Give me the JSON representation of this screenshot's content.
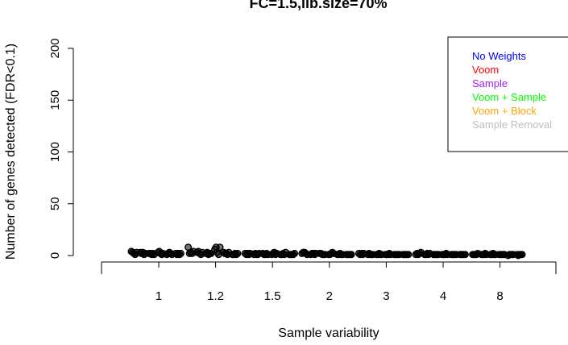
{
  "chart_data": {
    "type": "scatter",
    "title": "FC=1.5,lib.size=70%",
    "xlabel": "Sample variability",
    "ylabel": "Number of genes detected (FDR<0.1)",
    "categories": [
      "1",
      "1.2",
      "1.5",
      "2",
      "3",
      "4",
      "8"
    ],
    "ylim": [
      0,
      200
    ],
    "yticks": [
      0,
      50,
      100,
      150,
      200
    ],
    "legend_position": "top-right",
    "point_color": "#000000",
    "series": [
      {
        "name": "No Weights",
        "color": "#0000FF"
      },
      {
        "name": "Voom",
        "color": "#FF0000"
      },
      {
        "name": "Sample",
        "color": "#A020F0"
      },
      {
        "name": "Voom + Sample",
        "color": "#00FF00"
      },
      {
        "name": "Voom + Block",
        "color": "#FFA500"
      },
      {
        "name": "Sample Removal",
        "color": "#BEBEBE"
      }
    ],
    "points": [
      [
        [
          4,
          3,
          2,
          3,
          1,
          2
        ],
        [
          3,
          2,
          2,
          4,
          2,
          1
        ],
        [
          2,
          3,
          1,
          2,
          3,
          2
        ],
        [
          1,
          1,
          2,
          1,
          2,
          1
        ],
        [
          3,
          2,
          1,
          2,
          1,
          2
        ]
      ],
      [
        [
          8,
          3,
          2,
          6,
          3,
          1
        ],
        [
          2,
          4,
          3,
          8,
          2,
          1
        ],
        [
          3,
          2,
          1,
          3,
          2,
          2
        ],
        [
          2,
          1,
          2,
          1,
          1,
          1
        ],
        [
          4,
          3,
          2,
          8,
          3,
          2
        ]
      ],
      [
        [
          2,
          1,
          2,
          1,
          1,
          1
        ],
        [
          1,
          2,
          1,
          2,
          1,
          1
        ],
        [
          2,
          1,
          1,
          3,
          2,
          1
        ],
        [
          1,
          1,
          2,
          1,
          1,
          1
        ],
        [
          2,
          2,
          1,
          2,
          3,
          2
        ]
      ],
      [
        [
          2,
          1,
          2,
          1,
          1,
          1
        ],
        [
          3,
          2,
          2,
          1,
          1,
          1
        ],
        [
          3,
          2,
          1,
          2,
          2,
          1
        ],
        [
          2,
          1,
          1,
          3,
          1,
          1
        ],
        [
          1,
          2,
          1,
          2,
          1,
          1
        ]
      ],
      [
        [
          2,
          1,
          1,
          1,
          1,
          1
        ],
        [
          1,
          2,
          1,
          1,
          1,
          1
        ],
        [
          2,
          1,
          2,
          1,
          1,
          1
        ],
        [
          1,
          1,
          1,
          2,
          1,
          1
        ],
        [
          2,
          1,
          1,
          1,
          1,
          1
        ]
      ],
      [
        [
          1,
          1,
          1,
          1,
          1,
          1
        ],
        [
          2,
          1,
          1,
          1,
          1,
          1
        ],
        [
          1,
          2,
          1,
          1,
          1,
          1
        ],
        [
          2,
          1,
          1,
          2,
          1,
          1
        ],
        [
          3,
          2,
          1,
          1,
          1,
          1
        ]
      ],
      [
        [
          1,
          1,
          1,
          1,
          0,
          1
        ],
        [
          1,
          1,
          1,
          1,
          1,
          0
        ],
        [
          1,
          1,
          2,
          1,
          1,
          1
        ],
        [
          1,
          2,
          1,
          1,
          1,
          1
        ],
        [
          2,
          1,
          1,
          1,
          1,
          1
        ]
      ]
    ]
  }
}
